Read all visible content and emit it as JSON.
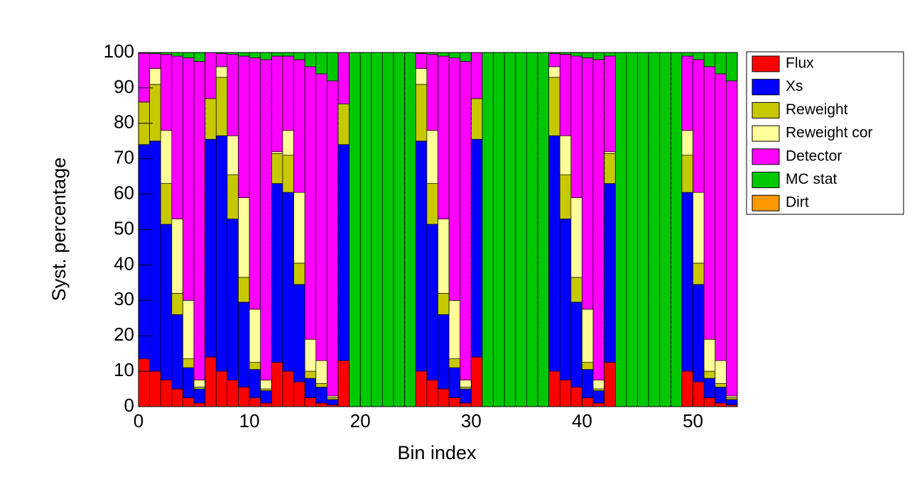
{
  "chart_data": {
    "type": "stacked_histogram",
    "x_label": "Bin index",
    "y_label": "Syst. percentage",
    "xlim": [
      0,
      54
    ],
    "xticks": [
      0,
      10,
      20,
      30,
      40,
      50
    ],
    "ylim": [
      0,
      100
    ],
    "yticks": [
      0,
      10,
      20,
      30,
      40,
      50,
      60,
      70,
      80,
      90,
      100
    ],
    "dividers": [
      6,
      12,
      18,
      24,
      30,
      36,
      42,
      48
    ],
    "bins": [
      0,
      1,
      2,
      3,
      4,
      5,
      6,
      7,
      8,
      9,
      10,
      11,
      12,
      13,
      14,
      15,
      16,
      17,
      18,
      19,
      20,
      21,
      22,
      23,
      24,
      25,
      26,
      27,
      28,
      29,
      30,
      31,
      32,
      33,
      34,
      35,
      36,
      37,
      38,
      39,
      40,
      41,
      42,
      43,
      44,
      45,
      46,
      47,
      48,
      49,
      50,
      51,
      52,
      53,
      54
    ],
    "series": [
      {
        "name": "Flux",
        "color": "#ff0000",
        "values": [
          13.5,
          10,
          7.5,
          5,
          2.5,
          1,
          14,
          10,
          7.5,
          5.5,
          2.5,
          1,
          12.5,
          10,
          7,
          2.5,
          1,
          0.5,
          13,
          0,
          0,
          0,
          0,
          0,
          0,
          10,
          7.5,
          5,
          2.5,
          1,
          14,
          0,
          0,
          0,
          0,
          0,
          0,
          10,
          7.5,
          5.5,
          2.5,
          1,
          12.5,
          0,
          0,
          0,
          0,
          0,
          0,
          10,
          7,
          2.5,
          1,
          0.5
        ]
      },
      {
        "name": "Xs",
        "color": "#0000ff",
        "values": [
          60.5,
          65,
          44,
          21,
          8.5,
          4,
          61.5,
          66.5,
          45.5,
          24,
          8,
          3.5,
          50.5,
          50.5,
          27.5,
          5.5,
          4.5,
          1.5,
          61,
          0,
          0,
          0,
          0,
          0,
          0,
          65,
          44,
          21,
          8.5,
          4,
          61.5,
          0,
          0,
          0,
          0,
          0,
          0,
          66.5,
          45.5,
          24,
          8,
          3.5,
          50.5,
          0,
          0,
          0,
          0,
          0,
          0,
          50.5,
          27.5,
          5.5,
          4.5,
          1.5
        ]
      },
      {
        "name": "Reweight",
        "color": "#c8c800",
        "values": [
          12,
          16,
          11.5,
          6,
          2.5,
          0.5,
          11.5,
          16.5,
          12.5,
          7,
          2,
          0.5,
          8.5,
          10.5,
          6,
          2,
          1,
          0.5,
          11.5,
          0,
          0,
          0,
          0,
          0,
          0,
          16,
          11.5,
          6,
          2.5,
          0.5,
          11.5,
          0,
          0,
          0,
          0,
          0,
          0,
          16.5,
          12.5,
          7,
          2,
          0.5,
          8.5,
          0,
          0,
          0,
          0,
          0,
          0,
          10.5,
          6,
          2,
          1,
          0.5
        ]
      },
      {
        "name": "Reweight cor",
        "color": "#ffff99",
        "values": [
          0,
          4.5,
          15,
          21,
          16.5,
          2,
          0,
          3,
          11,
          22.5,
          15,
          2.5,
          0.5,
          7,
          20,
          9,
          6.5,
          0.5,
          0,
          0,
          0,
          0,
          0,
          0,
          0,
          4.5,
          15,
          21,
          16.5,
          2,
          0,
          0,
          0,
          0,
          0,
          0,
          0,
          3,
          11,
          22.5,
          15,
          2.5,
          0.5,
          0,
          0,
          0,
          0,
          0,
          0,
          7,
          20,
          9,
          6.5,
          0.5
        ]
      },
      {
        "name": "Detector",
        "color": "#ff00ff",
        "values": [
          13.8,
          4.2,
          21.5,
          46,
          68.5,
          90,
          13,
          3.7,
          23,
          40,
          71,
          90.5,
          27,
          21,
          37.5,
          77,
          81,
          89,
          14.5,
          0,
          0,
          0,
          0,
          0,
          0,
          4.2,
          21.5,
          46,
          68.5,
          90,
          13,
          0,
          0,
          0,
          0,
          0,
          0,
          3.7,
          23,
          40,
          71,
          90.5,
          27,
          0,
          0,
          0,
          0,
          0,
          0,
          21,
          37.5,
          77,
          81,
          89
        ]
      },
      {
        "name": "MC stat",
        "color": "#00c800",
        "values": [
          0.2,
          0.3,
          0.5,
          1,
          1.5,
          2.5,
          0,
          0.3,
          0.5,
          1,
          1.5,
          2,
          1,
          1,
          2,
          4,
          6,
          8,
          0,
          100,
          100,
          100,
          100,
          100,
          100,
          0.3,
          0.5,
          1,
          1.5,
          2.5,
          0,
          100,
          100,
          100,
          100,
          100,
          100,
          0.3,
          0.5,
          1,
          1.5,
          2,
          1,
          100,
          100,
          100,
          100,
          100,
          100,
          1,
          2,
          4,
          6,
          8
        ]
      },
      {
        "name": "Dirt",
        "color": "#ff9900",
        "values": [
          0,
          0,
          0,
          0,
          0,
          0,
          0,
          0,
          0,
          0,
          0,
          0,
          0,
          0,
          0,
          0,
          0,
          0,
          0,
          0,
          0,
          0,
          0,
          0,
          0,
          0,
          0,
          0,
          0,
          0,
          0,
          0,
          0,
          0,
          0,
          0,
          0,
          0,
          0,
          0,
          0,
          0,
          0,
          0,
          0,
          0,
          0,
          0,
          0,
          0,
          0,
          0,
          0,
          0
        ]
      }
    ]
  }
}
